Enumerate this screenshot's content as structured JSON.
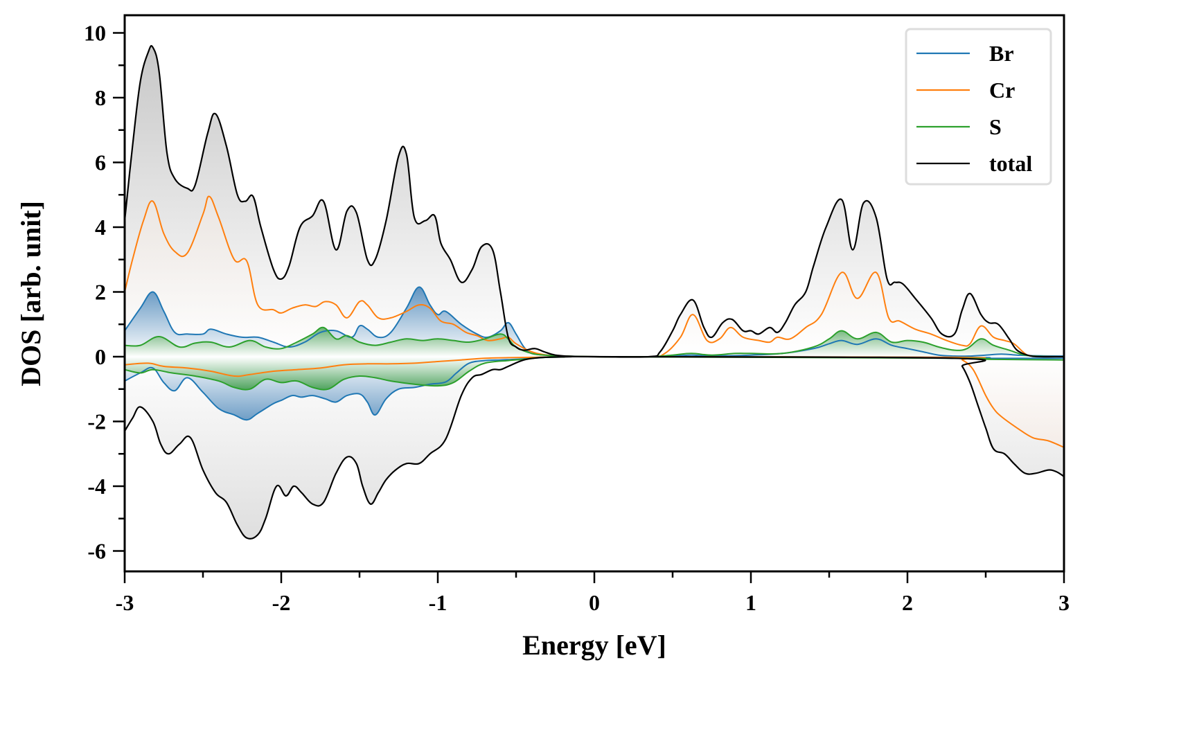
{
  "chart_data": {
    "type": "line",
    "title": "",
    "xlabel": "Energy [eV]",
    "ylabel": "DOS [arb. unit]",
    "xlim": [
      -3,
      3
    ],
    "ylim": [
      -6.6,
      10.5
    ],
    "xticks": [
      -3,
      -2,
      -1,
      0,
      1,
      2,
      3
    ],
    "xtick_labels": [
      "-3",
      "-2",
      "-1",
      "0",
      "1",
      "2",
      "3"
    ],
    "yticks": [
      -6,
      -4,
      -2,
      0,
      2,
      4,
      6,
      8,
      10
    ],
    "ytick_labels": [
      "-6",
      "-4",
      "-2",
      "0",
      "2",
      "4",
      "6",
      "8",
      "10"
    ],
    "grid": false,
    "legend_position": "top-right",
    "fill_between_zero": true,
    "series": [
      {
        "name": "Br",
        "color": "#1f77b4",
        "spin_up": {
          "x": [
            -3.0,
            -2.9,
            -2.82,
            -2.75,
            -2.68,
            -2.6,
            -2.5,
            -2.45,
            -2.35,
            -2.25,
            -2.15,
            -2.05,
            -1.95,
            -1.85,
            -1.75,
            -1.65,
            -1.55,
            -1.5,
            -1.45,
            -1.38,
            -1.3,
            -1.2,
            -1.12,
            -1.05,
            -1.0,
            -0.95,
            -0.85,
            -0.75,
            -0.68,
            -0.6,
            -0.55,
            -0.5,
            -0.45,
            -0.4,
            -0.3,
            -0.2,
            0.0,
            0.4,
            0.5,
            0.62,
            0.7,
            0.85,
            1.0,
            1.2,
            1.4,
            1.5,
            1.58,
            1.68,
            1.8,
            1.9,
            2.0,
            2.1,
            2.2,
            2.3,
            2.4,
            2.5,
            2.6,
            2.7,
            2.8,
            3.0
          ],
          "y": [
            0.8,
            1.5,
            2.0,
            1.4,
            0.75,
            0.7,
            0.7,
            0.85,
            0.7,
            0.6,
            0.6,
            0.45,
            0.3,
            0.45,
            0.75,
            0.8,
            0.6,
            0.95,
            0.85,
            0.6,
            0.75,
            1.5,
            2.15,
            1.6,
            1.3,
            1.4,
            1.0,
            0.7,
            0.6,
            0.8,
            1.05,
            0.7,
            0.3,
            0.1,
            0.05,
            0.02,
            0.0,
            0.0,
            0.02,
            0.05,
            0.03,
            0.03,
            0.05,
            0.1,
            0.25,
            0.4,
            0.5,
            0.38,
            0.55,
            0.35,
            0.25,
            0.15,
            0.05,
            0.02,
            0.02,
            0.05,
            0.08,
            0.05,
            0.03,
            0.02
          ]
        },
        "spin_down": {
          "x": [
            -3.0,
            -2.9,
            -2.82,
            -2.75,
            -2.68,
            -2.6,
            -2.5,
            -2.4,
            -2.3,
            -2.22,
            -2.15,
            -2.05,
            -2.0,
            -1.93,
            -1.87,
            -1.8,
            -1.72,
            -1.65,
            -1.58,
            -1.5,
            -1.45,
            -1.4,
            -1.33,
            -1.25,
            -1.15,
            -1.05,
            -0.95,
            -0.88,
            -0.8,
            -0.7,
            -0.6,
            -0.5,
            -0.4,
            -0.3,
            -0.2,
            0.0,
            2.3,
            2.5,
            3.0
          ],
          "y": [
            -0.75,
            -0.5,
            -0.35,
            -0.8,
            -1.05,
            -0.65,
            -1.1,
            -1.6,
            -1.8,
            -1.95,
            -1.75,
            -1.45,
            -1.35,
            -1.2,
            -1.25,
            -1.2,
            -1.3,
            -1.4,
            -1.2,
            -1.15,
            -1.4,
            -1.8,
            -1.3,
            -1.0,
            -0.95,
            -0.85,
            -0.78,
            -0.5,
            -0.2,
            -0.12,
            -0.1,
            -0.08,
            -0.05,
            -0.02,
            -0.01,
            0.0,
            -0.02,
            -0.05,
            -0.05
          ]
        }
      },
      {
        "name": "Cr",
        "color": "#ff7f0e",
        "spin_up": {
          "x": [
            -3.0,
            -2.95,
            -2.88,
            -2.82,
            -2.75,
            -2.68,
            -2.6,
            -2.5,
            -2.46,
            -2.4,
            -2.3,
            -2.22,
            -2.15,
            -2.05,
            -2.0,
            -1.93,
            -1.85,
            -1.78,
            -1.72,
            -1.65,
            -1.58,
            -1.5,
            -1.45,
            -1.38,
            -1.3,
            -1.2,
            -1.12,
            -1.05,
            -0.98,
            -0.9,
            -0.82,
            -0.75,
            -0.68,
            -0.6,
            -0.55,
            -0.5,
            -0.4,
            -0.3,
            -0.2,
            0.0,
            0.35,
            0.45,
            0.55,
            0.63,
            0.72,
            0.8,
            0.87,
            0.95,
            1.05,
            1.12,
            1.17,
            1.25,
            1.35,
            1.45,
            1.58,
            1.68,
            1.8,
            1.88,
            1.95,
            2.05,
            2.15,
            2.25,
            2.35,
            2.4,
            2.47,
            2.55,
            2.62,
            2.68,
            2.75,
            2.8,
            3.0
          ],
          "y": [
            2.0,
            3.0,
            4.2,
            4.8,
            3.8,
            3.25,
            3.2,
            4.4,
            4.95,
            4.3,
            3.0,
            2.95,
            1.6,
            1.45,
            1.35,
            1.5,
            1.6,
            1.55,
            1.7,
            1.6,
            1.2,
            1.7,
            1.6,
            1.2,
            1.2,
            1.4,
            1.6,
            1.5,
            1.1,
            1.0,
            0.75,
            0.65,
            0.5,
            0.55,
            0.6,
            0.4,
            0.15,
            0.05,
            0.02,
            0.0,
            0.0,
            0.1,
            0.6,
            1.3,
            0.5,
            0.55,
            0.9,
            0.6,
            0.5,
            0.45,
            0.6,
            0.55,
            0.9,
            1.3,
            2.6,
            1.8,
            2.6,
            1.2,
            1.1,
            0.85,
            0.7,
            0.5,
            0.35,
            0.4,
            0.95,
            0.6,
            0.5,
            0.4,
            0.1,
            0.02,
            0.0
          ]
        },
        "spin_down": {
          "x": [
            -3.0,
            -2.85,
            -2.75,
            -2.6,
            -2.45,
            -2.3,
            -2.2,
            -2.05,
            -1.9,
            -1.75,
            -1.6,
            -1.45,
            -1.3,
            -1.15,
            -1.0,
            -0.85,
            -0.7,
            -0.55,
            -0.4,
            -0.3,
            -0.2,
            0.0,
            2.3,
            2.35,
            2.42,
            2.5,
            2.55,
            2.6,
            2.7,
            2.8,
            2.9,
            3.0
          ],
          "y": [
            -0.25,
            -0.2,
            -0.3,
            -0.35,
            -0.45,
            -0.6,
            -0.55,
            -0.45,
            -0.4,
            -0.35,
            -0.25,
            -0.22,
            -0.22,
            -0.2,
            -0.15,
            -0.1,
            -0.05,
            -0.03,
            -0.02,
            -0.01,
            0.0,
            0.0,
            -0.02,
            -0.1,
            -0.4,
            -1.2,
            -1.6,
            -1.85,
            -2.2,
            -2.5,
            -2.6,
            -2.8
          ]
        }
      },
      {
        "name": "S",
        "color": "#2ca02c",
        "spin_up": {
          "x": [
            -3.0,
            -2.9,
            -2.78,
            -2.65,
            -2.55,
            -2.45,
            -2.33,
            -2.2,
            -2.1,
            -2.0,
            -1.9,
            -1.8,
            -1.73,
            -1.65,
            -1.58,
            -1.5,
            -1.4,
            -1.3,
            -1.2,
            -1.1,
            -1.0,
            -0.9,
            -0.8,
            -0.7,
            -0.6,
            -0.55,
            -0.5,
            -0.4,
            -0.3,
            -0.2,
            0.0,
            0.35,
            0.5,
            0.62,
            0.75,
            0.9,
            1.0,
            1.2,
            1.4,
            1.5,
            1.58,
            1.68,
            1.8,
            1.9,
            2.0,
            2.1,
            2.2,
            2.3,
            2.38,
            2.47,
            2.55,
            2.65,
            2.75,
            2.85,
            3.0
          ],
          "y": [
            0.35,
            0.35,
            0.62,
            0.3,
            0.42,
            0.45,
            0.3,
            0.5,
            0.3,
            0.25,
            0.45,
            0.7,
            0.9,
            0.55,
            0.65,
            0.45,
            0.35,
            0.45,
            0.55,
            0.5,
            0.55,
            0.5,
            0.45,
            0.55,
            0.7,
            0.55,
            0.3,
            0.1,
            0.04,
            0.02,
            0.0,
            0.0,
            0.05,
            0.1,
            0.05,
            0.1,
            0.1,
            0.1,
            0.3,
            0.55,
            0.8,
            0.55,
            0.75,
            0.45,
            0.5,
            0.45,
            0.3,
            0.2,
            0.25,
            0.55,
            0.35,
            0.2,
            0.05,
            0.01,
            0.0
          ]
        },
        "spin_down": {
          "x": [
            -3.0,
            -2.9,
            -2.82,
            -2.7,
            -2.55,
            -2.4,
            -2.3,
            -2.2,
            -2.1,
            -2.0,
            -1.9,
            -1.8,
            -1.7,
            -1.6,
            -1.5,
            -1.4,
            -1.3,
            -1.15,
            -1.0,
            -0.9,
            -0.8,
            -0.7,
            -0.55,
            -0.45,
            -0.35,
            -0.2,
            0.0,
            2.3,
            2.5,
            3.0
          ],
          "y": [
            -0.4,
            -0.5,
            -0.4,
            -0.5,
            -0.6,
            -0.75,
            -0.95,
            -1.0,
            -0.7,
            -0.8,
            -0.75,
            -0.95,
            -1.0,
            -0.7,
            -0.6,
            -0.65,
            -0.75,
            -0.85,
            -0.9,
            -0.8,
            -0.45,
            -0.2,
            -0.12,
            -0.08,
            -0.03,
            -0.01,
            0.0,
            -0.05,
            -0.08,
            -0.1
          ]
        }
      },
      {
        "name": "total",
        "color": "#000000",
        "spin_up": {
          "x": [
            -3.0,
            -2.95,
            -2.9,
            -2.85,
            -2.82,
            -2.78,
            -2.73,
            -2.68,
            -2.6,
            -2.55,
            -2.47,
            -2.42,
            -2.35,
            -2.28,
            -2.23,
            -2.18,
            -2.13,
            -2.05,
            -2.0,
            -1.95,
            -1.88,
            -1.8,
            -1.73,
            -1.65,
            -1.58,
            -1.52,
            -1.45,
            -1.4,
            -1.33,
            -1.25,
            -1.2,
            -1.15,
            -1.08,
            -1.02,
            -0.98,
            -0.92,
            -0.85,
            -0.78,
            -0.72,
            -0.65,
            -0.6,
            -0.55,
            -0.5,
            -0.45,
            -0.38,
            -0.32,
            -0.25,
            -0.15,
            0.0,
            0.35,
            0.42,
            0.5,
            0.55,
            0.63,
            0.7,
            0.75,
            0.82,
            0.88,
            0.95,
            1.0,
            1.05,
            1.12,
            1.17,
            1.22,
            1.28,
            1.35,
            1.4,
            1.48,
            1.58,
            1.65,
            1.72,
            1.8,
            1.87,
            1.92,
            1.97,
            2.05,
            2.15,
            2.22,
            2.3,
            2.35,
            2.4,
            2.47,
            2.52,
            2.58,
            2.65,
            2.7,
            2.78,
            2.85,
            3.0
          ],
          "y": [
            4.2,
            6.5,
            8.5,
            9.4,
            9.55,
            8.8,
            6.3,
            5.5,
            5.2,
            5.3,
            6.9,
            7.5,
            6.5,
            5.0,
            4.8,
            4.95,
            4.0,
            2.7,
            2.4,
            2.8,
            4.0,
            4.35,
            4.8,
            3.3,
            4.5,
            4.45,
            3.0,
            3.0,
            4.2,
            6.2,
            6.25,
            4.3,
            4.2,
            4.35,
            3.5,
            3.0,
            2.3,
            2.7,
            3.4,
            3.3,
            2.0,
            0.6,
            0.3,
            0.2,
            0.25,
            0.15,
            0.05,
            0.01,
            0.0,
            0.0,
            0.15,
            0.8,
            1.3,
            1.75,
            0.9,
            0.6,
            1.05,
            1.15,
            0.8,
            0.8,
            0.7,
            0.9,
            0.75,
            1.05,
            1.6,
            2.0,
            2.8,
            4.0,
            4.85,
            3.3,
            4.75,
            4.3,
            2.4,
            2.3,
            2.25,
            1.8,
            1.2,
            0.7,
            0.7,
            1.45,
            1.95,
            1.3,
            1.05,
            1.0,
            0.55,
            0.2,
            0.03,
            0.0,
            0.0
          ]
        },
        "spin_down": {
          "x": [
            -3.0,
            -2.95,
            -2.9,
            -2.82,
            -2.77,
            -2.72,
            -2.65,
            -2.58,
            -2.5,
            -2.42,
            -2.35,
            -2.28,
            -2.22,
            -2.15,
            -2.1,
            -2.03,
            -1.97,
            -1.92,
            -1.87,
            -1.8,
            -1.73,
            -1.65,
            -1.58,
            -1.52,
            -1.48,
            -1.43,
            -1.38,
            -1.33,
            -1.27,
            -1.2,
            -1.12,
            -1.05,
            -0.95,
            -0.85,
            -0.78,
            -0.72,
            -0.65,
            -0.6,
            -0.55,
            -0.45,
            -0.35,
            -0.25,
            -0.15,
            0.0,
            2.3,
            2.35,
            2.4,
            2.45,
            2.5,
            2.55,
            2.62,
            2.68,
            2.75,
            2.82,
            2.9,
            2.95,
            3.0
          ],
          "y": [
            -2.3,
            -1.9,
            -1.55,
            -2.0,
            -2.7,
            -3.0,
            -2.7,
            -2.5,
            -3.5,
            -4.2,
            -4.5,
            -5.2,
            -5.6,
            -5.5,
            -5.0,
            -4.0,
            -4.3,
            -4.0,
            -4.2,
            -4.55,
            -4.5,
            -3.6,
            -3.1,
            -3.3,
            -4.0,
            -4.55,
            -4.2,
            -3.8,
            -3.5,
            -3.3,
            -3.3,
            -3.0,
            -2.55,
            -1.2,
            -0.65,
            -0.55,
            -0.4,
            -0.4,
            -0.3,
            -0.1,
            -0.03,
            -0.01,
            0.0,
            0.0,
            -0.05,
            -0.3,
            -0.8,
            -1.5,
            -2.2,
            -2.85,
            -3.0,
            -3.3,
            -3.6,
            -3.6,
            -3.5,
            -3.55,
            -3.7
          ]
        }
      }
    ]
  }
}
